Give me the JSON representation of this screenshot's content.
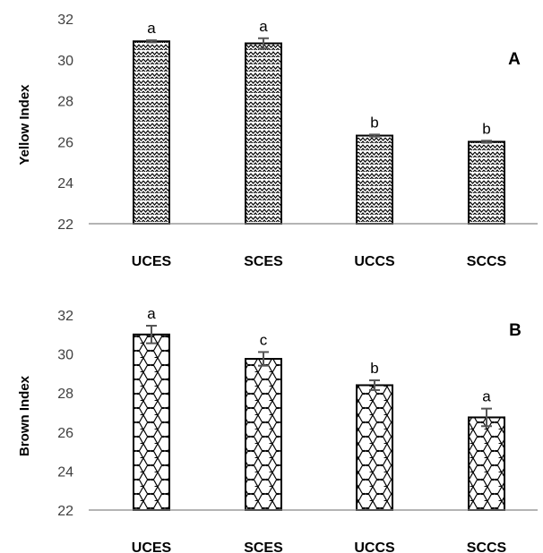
{
  "chart_data": [
    {
      "type": "bar",
      "panel": "A",
      "ylabel": "Yellow Index",
      "xlabel": "",
      "title": "",
      "categories": [
        "UCES",
        "SCES",
        "UCCS",
        "SCCS"
      ],
      "values": [
        30.9,
        30.8,
        26.3,
        26.0
      ],
      "errors": [
        0.05,
        0.25,
        0.05,
        0.05
      ],
      "labels": [
        "a",
        "a",
        "b",
        "b"
      ],
      "ylim": [
        22,
        32
      ],
      "yticks": [
        22,
        24,
        26,
        28,
        30,
        32
      ],
      "pattern": "zigzag",
      "legend": "none"
    },
    {
      "type": "bar",
      "panel": "B",
      "ylabel": "Brown Index",
      "xlabel": "",
      "title": "",
      "categories": [
        "UCES",
        "SCES",
        "UCCS",
        "SCCS"
      ],
      "values": [
        31.0,
        29.75,
        28.4,
        26.75
      ],
      "errors": [
        0.45,
        0.35,
        0.25,
        0.45
      ],
      "labels": [
        "a",
        "c",
        "b",
        "a"
      ],
      "ylim": [
        22,
        32
      ],
      "yticks": [
        22,
        24,
        26,
        28,
        30,
        32
      ],
      "pattern": "wave",
      "legend": "none"
    }
  ]
}
